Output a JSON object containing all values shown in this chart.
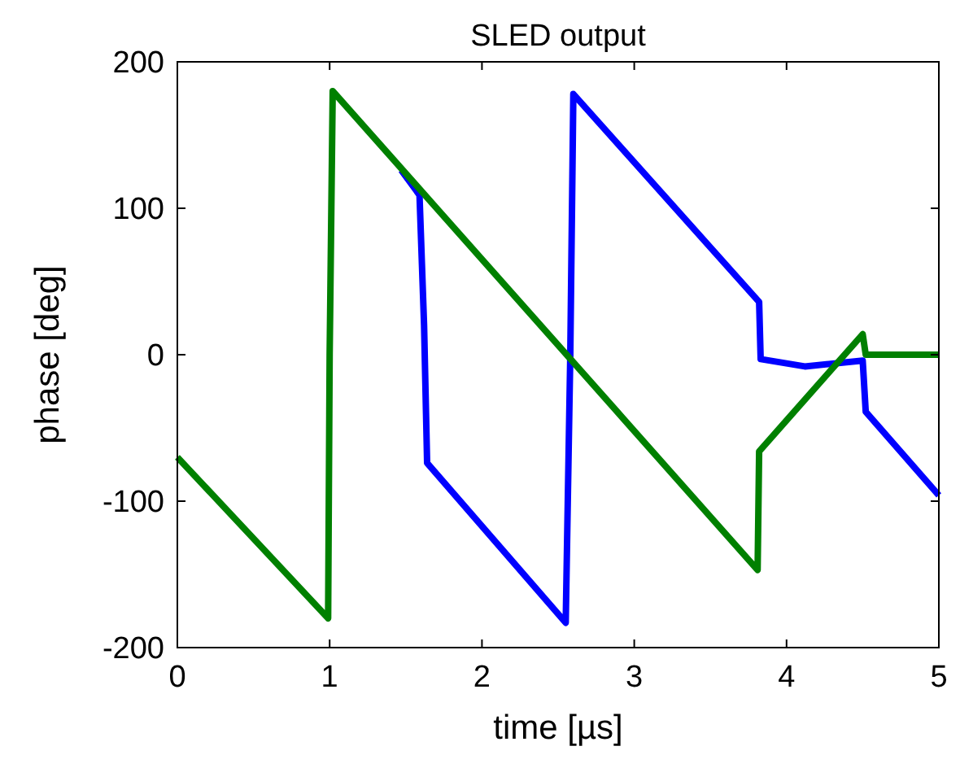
{
  "chart_data": {
    "type": "line",
    "title": "SLED output",
    "xlabel": "time [µs]",
    "ylabel": "phase [deg]",
    "xlim": [
      0,
      5
    ],
    "ylim": [
      -200,
      200
    ],
    "xticks": [
      0,
      1,
      2,
      3,
      4,
      5
    ],
    "yticks": [
      -200,
      -100,
      0,
      100,
      200
    ],
    "grid": false,
    "marker": "none",
    "line_style": "solid",
    "series": [
      {
        "color": "#0000ff",
        "x": [
          1.47,
          1.59,
          1.62,
          1.64,
          2.55,
          2.58,
          2.6,
          3.82,
          3.83,
          4.12,
          4.5,
          4.52,
          5
        ],
        "values": [
          126,
          109,
          20,
          -74,
          -183,
          0,
          178,
          36,
          -3,
          -8,
          -4,
          -39,
          -96
        ]
      },
      {
        "color": "#008000",
        "x": [
          0,
          0.99,
          1.0,
          1.02,
          3.81,
          3.82,
          4.5,
          4.52,
          5
        ],
        "values": [
          -70,
          -180,
          0,
          180,
          -147,
          -66,
          14,
          0,
          0
        ]
      }
    ]
  }
}
